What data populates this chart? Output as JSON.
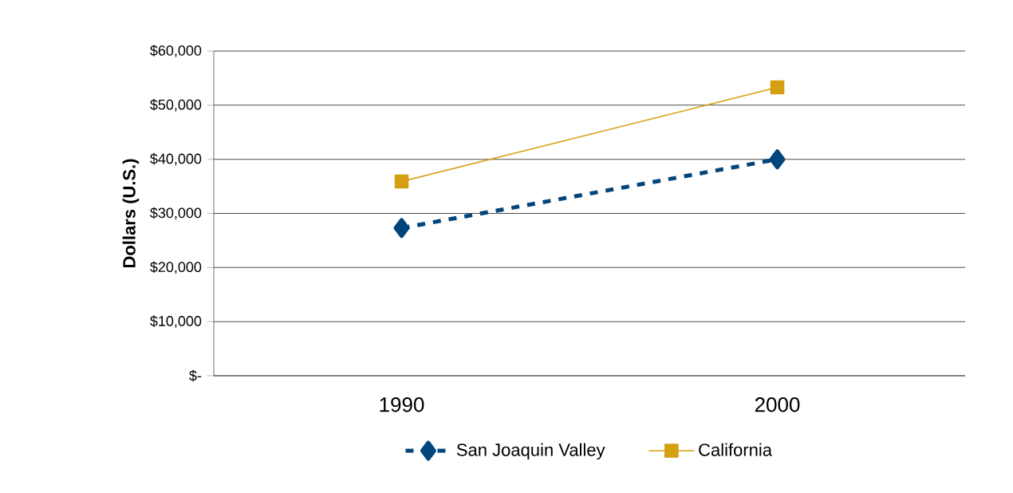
{
  "chart_data": {
    "type": "line",
    "ylabel": "Dollars (U.S.)",
    "categories": [
      "1990",
      "2000"
    ],
    "series": [
      {
        "name": "San Joaquin Valley",
        "color": "#00457c",
        "values": [
          27300,
          40000
        ],
        "marker": "diamond",
        "line_style": "dashed"
      },
      {
        "name": "California",
        "color": "#d4a00f",
        "values": [
          35900,
          53300
        ],
        "marker": "square",
        "line_style": "solid"
      }
    ],
    "ylim": [
      0,
      60000
    ],
    "yticks": [
      {
        "value": 0,
        "label": "$-"
      },
      {
        "value": 10000,
        "label": "$10,000"
      },
      {
        "value": 20000,
        "label": "$20,000"
      },
      {
        "value": 30000,
        "label": "$30,000"
      },
      {
        "value": 40000,
        "label": "$40,000"
      },
      {
        "value": 50000,
        "label": "$50,000"
      },
      {
        "value": 60000,
        "label": "$60,000"
      }
    ],
    "grid": "y",
    "legend": "bottom"
  }
}
